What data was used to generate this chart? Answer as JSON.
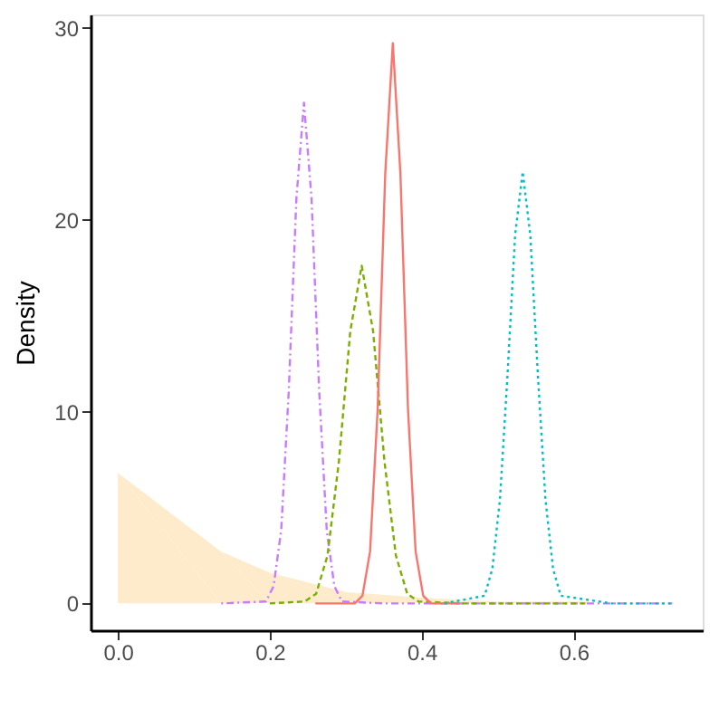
{
  "chart_data": {
    "type": "line",
    "ylabel": "Density",
    "xlim": [
      -0.036,
      0.77
    ],
    "ylim": [
      -1.4,
      30.7
    ],
    "xticks": [
      {
        "value": 0,
        "label": "0.0"
      },
      {
        "value": 0.2,
        "label": "0.2"
      },
      {
        "value": 0.4,
        "label": "0.4"
      },
      {
        "value": 0.6,
        "label": "0.6"
      }
    ],
    "yticks": [
      0,
      10,
      20,
      30
    ],
    "grid": false,
    "series": [
      {
        "type": "area",
        "color": "#feebcb",
        "x": [
          0,
          0.136,
          0.2,
          0.3,
          0.4,
          0.5,
          0.62
        ],
        "values": [
          6.8,
          2.7,
          1.6,
          0.6,
          0.3,
          0.1,
          0.1
        ]
      },
      {
        "color": "#c77cff",
        "line_style": "dashdot",
        "x": [
          0.136,
          0.195,
          0.205,
          0.215,
          0.225,
          0.235,
          0.245,
          0.255,
          0.265,
          0.275,
          0.285,
          0.295,
          0.35,
          0.5,
          0.73
        ],
        "values": [
          0,
          0.1,
          0.9,
          3.8,
          11.1,
          21.1,
          26.1,
          21.1,
          11.1,
          3.8,
          0.9,
          0.1,
          0,
          0,
          0
        ]
      },
      {
        "color": "#7cae00",
        "line_style": "dashed",
        "x": [
          0.2,
          0.246,
          0.261,
          0.276,
          0.291,
          0.306,
          0.321,
          0.336,
          0.351,
          0.366,
          0.381,
          0.396,
          0.45,
          0.62
        ],
        "values": [
          0,
          0.1,
          0.5,
          2.5,
          7.4,
          14.2,
          17.6,
          14.2,
          7.4,
          2.5,
          0.5,
          0.1,
          0,
          0
        ]
      },
      {
        "color": "#f8766d",
        "line_style": "solid",
        "x": [
          0.26,
          0.312,
          0.322,
          0.332,
          0.342,
          0.352,
          0.362,
          0.372,
          0.382,
          0.392,
          0.402,
          0.412,
          0.45
        ],
        "values": [
          0,
          0,
          0.4,
          2.7,
          10.1,
          22.4,
          29.2,
          22.4,
          10.1,
          2.7,
          0.4,
          0,
          0
        ]
      },
      {
        "color": "#00bfc4",
        "line_style": "dotted",
        "x": [
          0.43,
          0.483,
          0.493,
          0.503,
          0.513,
          0.523,
          0.533,
          0.543,
          0.553,
          0.563,
          0.573,
          0.583,
          0.65,
          0.73
        ],
        "values": [
          0,
          0.4,
          1.8,
          5.4,
          11.9,
          19.2,
          22.5,
          19.2,
          11.9,
          5.4,
          1.8,
          0.4,
          0,
          0
        ]
      }
    ]
  }
}
